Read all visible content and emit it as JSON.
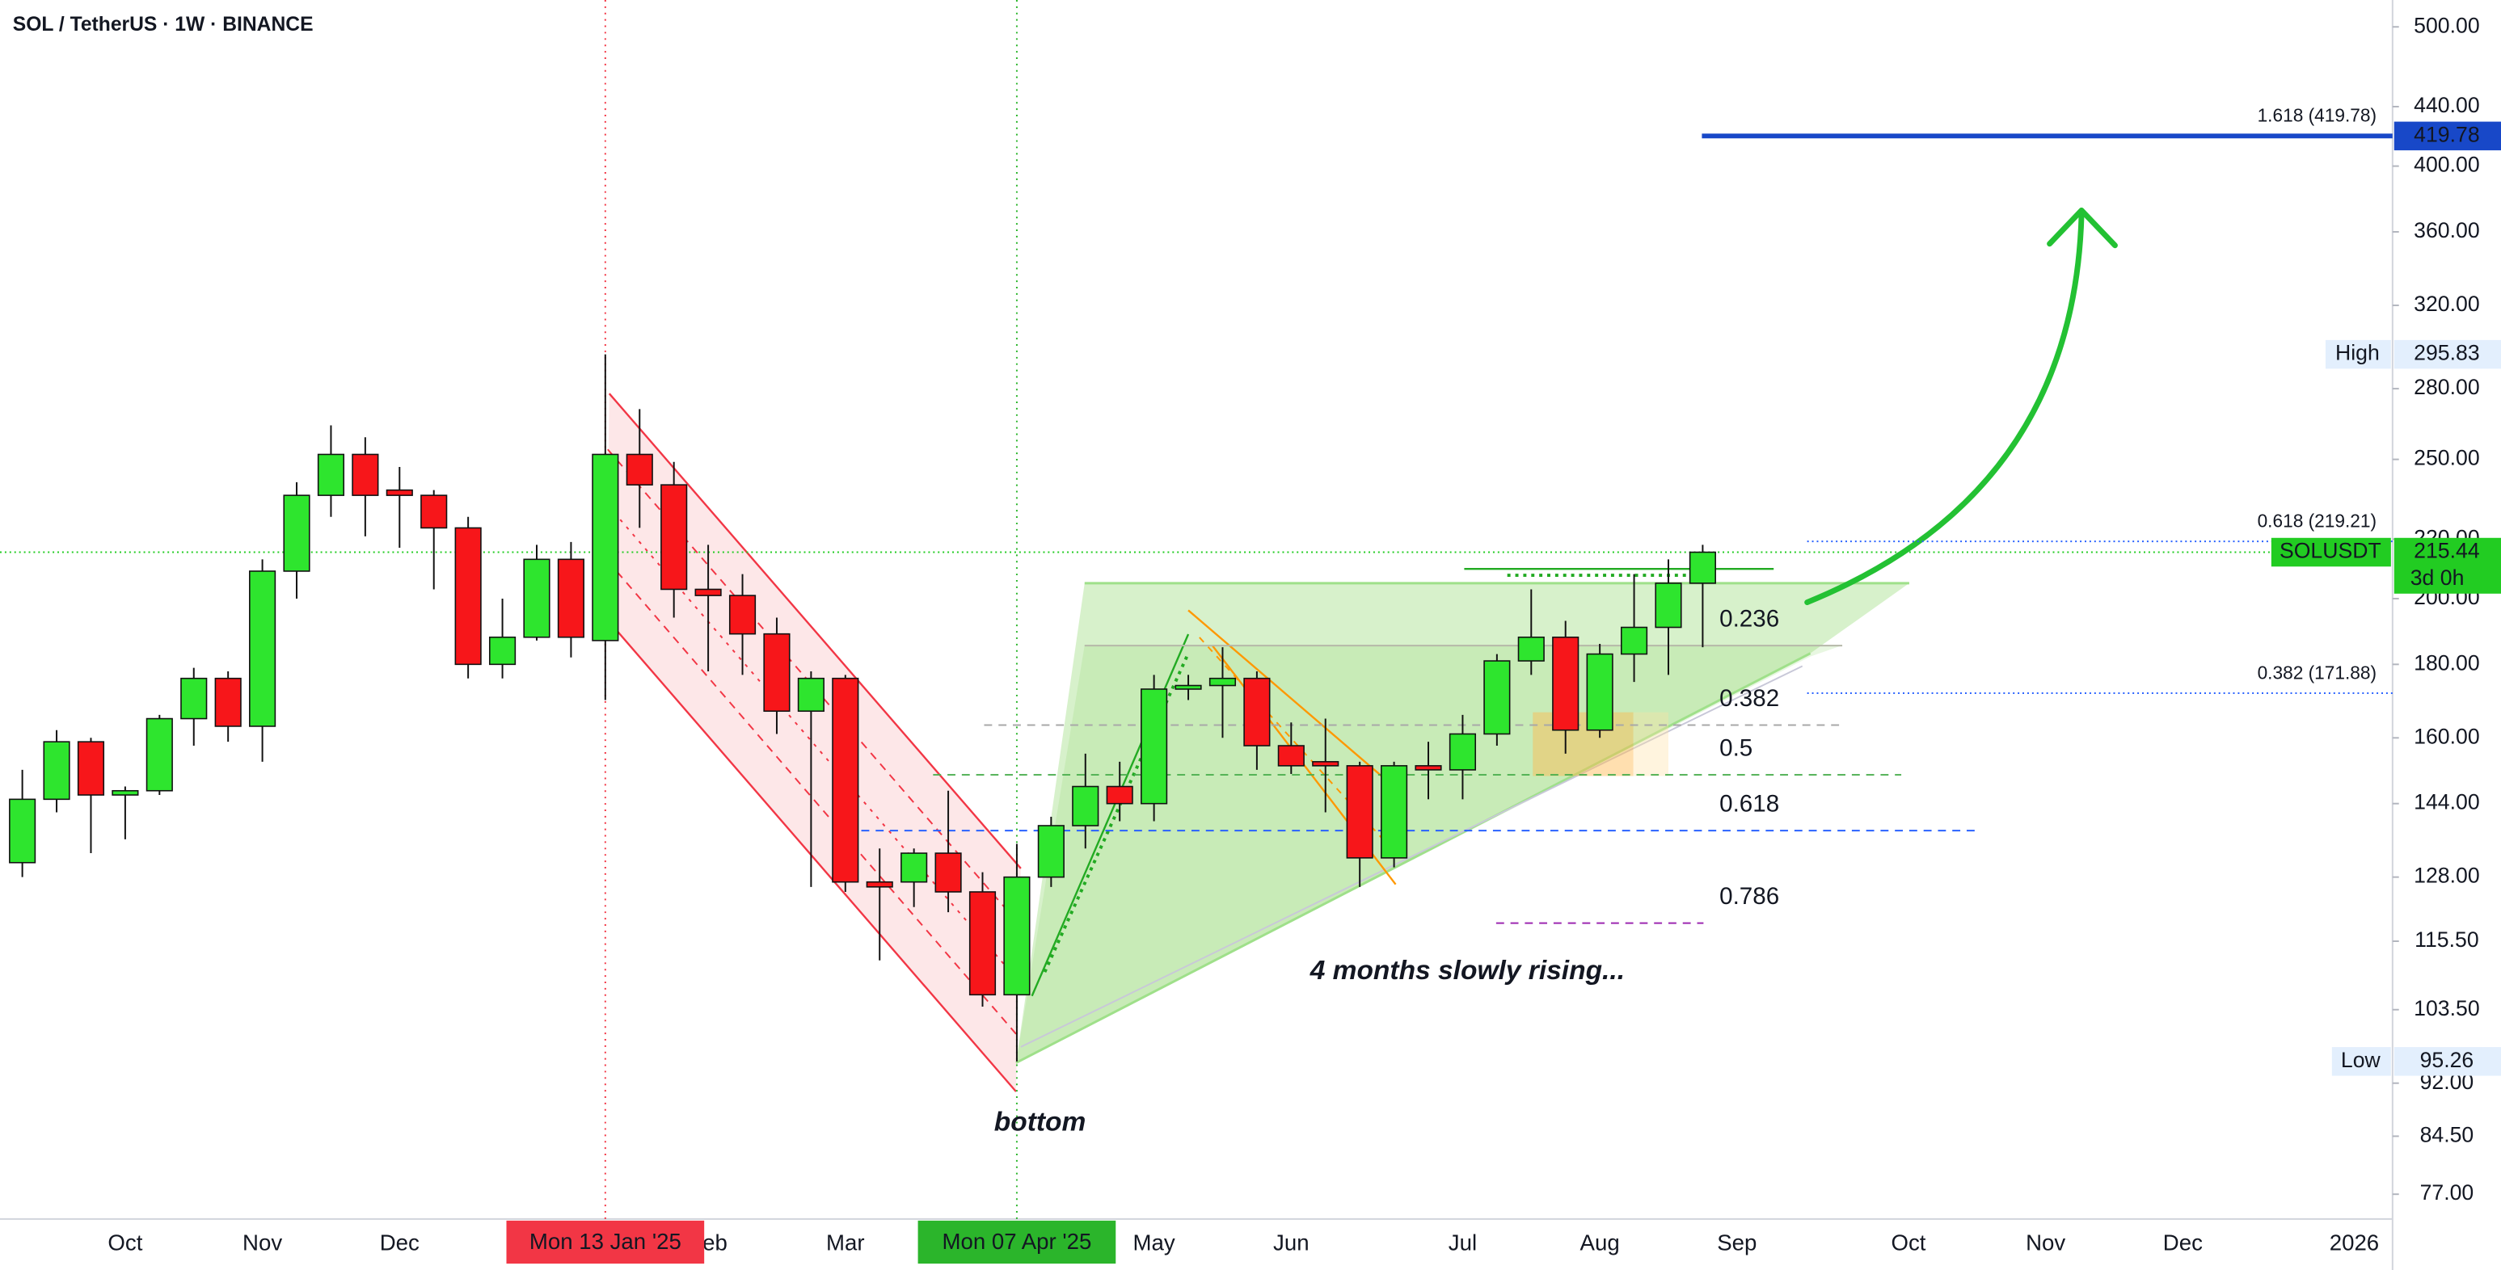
{
  "chart_data": {
    "type": "candlestick",
    "title": "SOL / TetherUS · 1W · BINANCE",
    "log_scale": true,
    "up_color": "#2ee52e",
    "down_color": "#f7161a",
    "ylim": [
      74,
      522
    ],
    "yticks": [
      {
        "value": 500,
        "label": "500.00"
      },
      {
        "value": 440,
        "label": "440.00"
      },
      {
        "value": 400,
        "label": "400.00"
      },
      {
        "value": 360,
        "label": "360.00"
      },
      {
        "value": 320,
        "label": "320.00"
      },
      {
        "value": 280,
        "label": "280.00"
      },
      {
        "value": 250,
        "label": "250.00"
      },
      {
        "value": 220,
        "label": "220.00"
      },
      {
        "value": 200,
        "label": "200.00"
      },
      {
        "value": 180,
        "label": "180.00"
      },
      {
        "value": 160,
        "label": "160.00"
      },
      {
        "value": 144,
        "label": "144.00"
      },
      {
        "value": 128,
        "label": "128.00"
      },
      {
        "value": 115.5,
        "label": "115.50"
      },
      {
        "value": 103.5,
        "label": "103.50"
      },
      {
        "value": 92,
        "label": "92.00"
      },
      {
        "value": 84.5,
        "label": "84.50"
      },
      {
        "value": 77,
        "label": "77.00"
      }
    ],
    "categories": [
      null,
      null,
      null,
      "Oct",
      null,
      null,
      null,
      "Nov",
      null,
      null,
      null,
      "Dec",
      null,
      null,
      null,
      null,
      null,
      null,
      null,
      null,
      "Feb",
      null,
      null,
      null,
      "Mar",
      null,
      null,
      null,
      null,
      null,
      null,
      null,
      null,
      "May",
      null,
      null,
      null,
      "Jun",
      null,
      null,
      null,
      null,
      "Jul",
      null,
      null,
      null,
      "Aug",
      null,
      null,
      null,
      "Sep",
      null,
      null,
      null,
      null,
      "Oct",
      null,
      null,
      null,
      "Nov",
      null,
      null,
      null,
      "Dec",
      null,
      null,
      null,
      null,
      "2026",
      null
    ],
    "open": [
      131,
      145,
      159,
      146,
      147,
      165,
      176,
      163,
      209,
      236,
      252,
      238,
      236,
      224,
      180,
      188,
      213,
      187,
      252,
      240,
      203,
      201,
      189,
      167,
      176,
      127,
      127,
      133,
      125,
      106,
      128,
      139,
      148,
      144,
      173,
      174,
      176,
      158,
      154,
      153,
      132,
      153,
      152,
      161,
      181,
      188,
      162,
      183,
      191,
      205,
      null,
      null,
      null,
      null,
      null,
      null,
      null,
      null,
      null,
      null,
      null,
      null,
      null,
      null,
      null,
      null,
      null,
      null,
      null,
      null
    ],
    "high": [
      152,
      162,
      160,
      148,
      166,
      179,
      178,
      213,
      241,
      264,
      259,
      247,
      238,
      228,
      200,
      218,
      219,
      295.83,
      271,
      249,
      218,
      208,
      194,
      178,
      177,
      134,
      134,
      147,
      129,
      135,
      141,
      156,
      154,
      177,
      177,
      185,
      178,
      164,
      165,
      154,
      154,
      159,
      166,
      183,
      203,
      193,
      186,
      208,
      213,
      218,
      null,
      null,
      null,
      null,
      null,
      null,
      null,
      null,
      null,
      null,
      null,
      null,
      null,
      null,
      null,
      null,
      null,
      null,
      null,
      null
    ],
    "low": [
      128,
      142,
      133,
      136,
      146,
      158,
      159,
      154,
      200,
      228,
      221,
      217,
      203,
      176,
      176,
      187,
      182,
      170,
      224,
      194,
      178,
      177,
      161,
      126,
      125,
      112,
      122,
      121,
      104,
      95.26,
      126,
      134,
      140,
      140,
      170,
      160,
      152,
      151,
      142,
      126,
      130,
      145,
      145,
      158,
      177,
      156,
      160,
      175,
      177,
      185,
      null,
      null,
      null,
      null,
      null,
      null,
      null,
      null,
      null,
      null,
      null,
      null,
      null,
      null,
      null,
      null,
      null,
      null,
      null,
      null
    ],
    "close": [
      145,
      159,
      146,
      147,
      165,
      176,
      163,
      209,
      236,
      252,
      236,
      236,
      224,
      180,
      188,
      213,
      188,
      252,
      240,
      203,
      201,
      189,
      167,
      176,
      127,
      126,
      133,
      125,
      106,
      128,
      139,
      148,
      144,
      173,
      174,
      176,
      158,
      153,
      153,
      132,
      153,
      152,
      161,
      181,
      188,
      162,
      183,
      191,
      205,
      215.44,
      null,
      null,
      null,
      null,
      null,
      null,
      null,
      null,
      null,
      null,
      null,
      null,
      null,
      null,
      null,
      null,
      null,
      null,
      null,
      null
    ],
    "markers": [
      {
        "label": "Mon 13 Jan '25",
        "index": 17,
        "color": "#f23645"
      },
      {
        "label": "Mon 07 Apr '25",
        "index": 29,
        "color": "#2bb52b"
      }
    ],
    "fib_levels": [
      {
        "label": "0.236",
        "value": 185.5,
        "color": "#b5b8a8"
      },
      {
        "label": "0.382",
        "value": 163.3,
        "color": "#a8a8a8"
      },
      {
        "label": "0.5",
        "value": 150.8,
        "color": "#4caf50"
      },
      {
        "label": "0.618",
        "value": 137.9,
        "color": "#2962ff"
      },
      {
        "label": "0.786",
        "value": 118.9,
        "color": "#9c27b0"
      }
    ],
    "fib_extension": [
      {
        "label": "1.618 (419.78)",
        "value": 419.78,
        "color": "#1848c8"
      },
      {
        "label": "0.618 (219.21)",
        "value": 219.21,
        "color": "#2962ff"
      },
      {
        "label": "0.382 (171.88)",
        "value": 171.88,
        "color": "#2962ff"
      }
    ],
    "high_marker": {
      "label": "High",
      "value": 295.83
    },
    "low_marker": {
      "label": "Low",
      "value": 95.26
    },
    "last_price": {
      "symbol": "SOLUSDT",
      "value": 215.44,
      "countdown": "3d 0h",
      "color": "#22cc22"
    },
    "annotations": [
      {
        "text": "4 months slowly rising...",
        "color": "#23b92e"
      },
      {
        "text": "bottom",
        "color": "#1a44c8"
      }
    ]
  }
}
